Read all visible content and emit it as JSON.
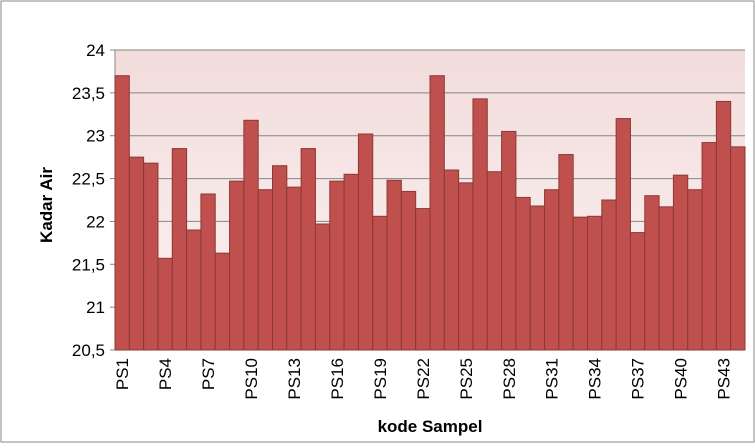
{
  "chart_data": {
    "type": "bar",
    "x_label": "kode Sampel",
    "y_label": "Kadar Air",
    "categories": [
      "PS1",
      null,
      null,
      "PS4",
      null,
      null,
      "PS7",
      null,
      null,
      "PS10",
      null,
      null,
      "PS13",
      null,
      null,
      "PS16",
      null,
      null,
      "PS19",
      null,
      null,
      "PS22",
      null,
      null,
      "PS25",
      null,
      null,
      "PS28",
      null,
      null,
      "PS31",
      null,
      null,
      "PS34",
      null,
      null,
      "PS37",
      null,
      null,
      "PS40",
      null,
      null,
      "PS43",
      null
    ],
    "values": [
      23.7,
      22.75,
      22.68,
      21.57,
      22.85,
      21.9,
      22.32,
      21.63,
      22.47,
      23.18,
      22.37,
      22.65,
      22.4,
      22.85,
      21.97,
      22.47,
      22.55,
      23.02,
      22.06,
      22.48,
      22.35,
      22.15,
      23.7,
      22.6,
      22.45,
      23.43,
      22.58,
      23.05,
      22.28,
      22.18,
      22.37,
      22.78,
      22.05,
      22.06,
      22.25,
      23.2,
      21.87,
      22.3,
      22.17,
      22.54,
      22.37,
      22.92,
      23.4,
      22.87
    ],
    "color": "#c0504d",
    "ylim": [
      20.5,
      24
    ],
    "yticks": [
      {
        "value": 20.5,
        "label": "20,5"
      },
      21,
      {
        "value": 21.5,
        "label": "21,5"
      },
      22,
      {
        "value": 22.5,
        "label": "22,5"
      },
      23,
      {
        "value": 23.5,
        "label": "23,5"
      },
      24
    ],
    "grid": true
  }
}
